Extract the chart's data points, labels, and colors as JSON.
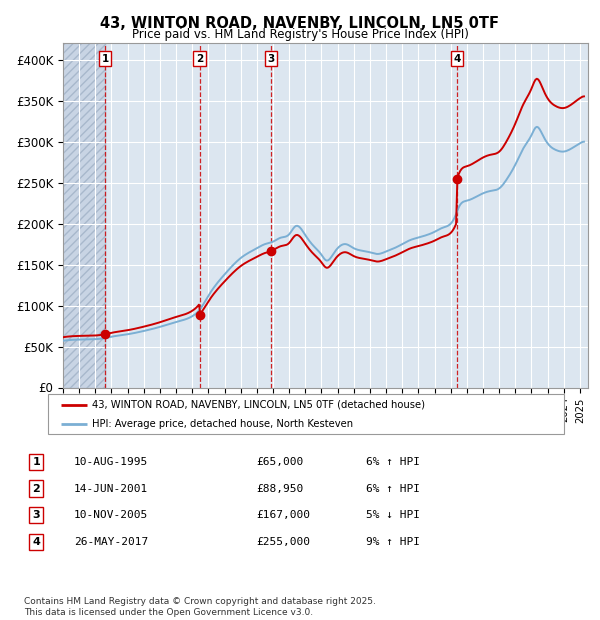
{
  "title_line1": "43, WINTON ROAD, NAVENBY, LINCOLN, LN5 0TF",
  "title_line2": "Price paid vs. HM Land Registry's House Price Index (HPI)",
  "ytick_labels": [
    "£0",
    "£50K",
    "£100K",
    "£150K",
    "£200K",
    "£250K",
    "£300K",
    "£350K",
    "£400K"
  ],
  "ytick_vals": [
    0,
    50000,
    100000,
    150000,
    200000,
    250000,
    300000,
    350000,
    400000
  ],
  "price_color": "#cc0000",
  "hpi_color": "#7bafd4",
  "dot_color": "#cc0000",
  "vline_color": "#cc0000",
  "background_color": "#dce6f0",
  "grid_color": "#ffffff",
  "sale_prices": [
    65000,
    88950,
    167000,
    255000
  ],
  "sale_labels": [
    "1",
    "2",
    "3",
    "4"
  ],
  "sale_yrs": [
    1995.608,
    2001.454,
    2005.868,
    2017.403
  ],
  "sale_info": [
    {
      "num": "1",
      "date": "10-AUG-1995",
      "price": "£65,000",
      "hpi": "6% ↑ HPI"
    },
    {
      "num": "2",
      "date": "14-JUN-2001",
      "price": "£88,950",
      "hpi": "6% ↑ HPI"
    },
    {
      "num": "3",
      "date": "10-NOV-2005",
      "price": "£167,000",
      "hpi": "5% ↓ HPI"
    },
    {
      "num": "4",
      "date": "26-MAY-2017",
      "price": "£255,000",
      "hpi": "9% ↑ HPI"
    }
  ],
  "legend_entries": [
    "43, WINTON ROAD, NAVENBY, LINCOLN, LN5 0TF (detached house)",
    "HPI: Average price, detached house, North Kesteven"
  ],
  "footer": "Contains HM Land Registry data © Crown copyright and database right 2025.\nThis data is licensed under the Open Government Licence v3.0.",
  "xmin": 1993.0,
  "xmax": 2025.5,
  "ymin": 0,
  "ymax": 420000
}
